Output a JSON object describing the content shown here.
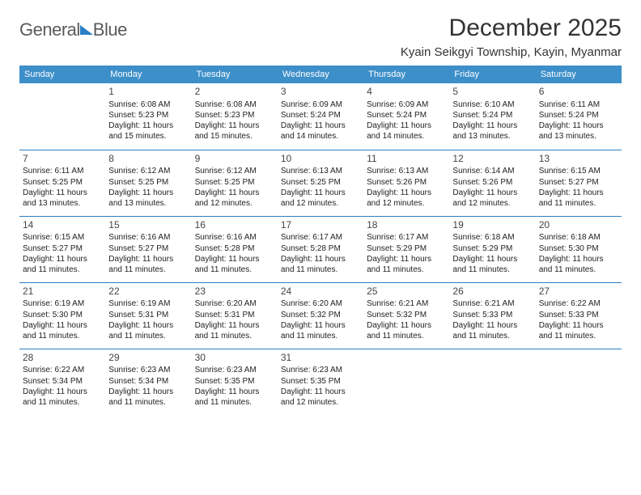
{
  "logo": {
    "text_left": "General",
    "text_right": "Blue"
  },
  "title": "December 2025",
  "location": "Kyain Seikgyi Township, Kayin, Myanmar",
  "colors": {
    "header_bg": "#3d8fc9",
    "rule": "#2a7ec5",
    "logo_gray": "#5a5a5a",
    "logo_blue": "#2a7ec5"
  },
  "weekdays": [
    "Sunday",
    "Monday",
    "Tuesday",
    "Wednesday",
    "Thursday",
    "Friday",
    "Saturday"
  ],
  "weeks": [
    [
      null,
      {
        "n": "1",
        "sr": "6:08 AM",
        "ss": "5:23 PM",
        "dl": "11 hours and 15 minutes."
      },
      {
        "n": "2",
        "sr": "6:08 AM",
        "ss": "5:23 PM",
        "dl": "11 hours and 15 minutes."
      },
      {
        "n": "3",
        "sr": "6:09 AM",
        "ss": "5:24 PM",
        "dl": "11 hours and 14 minutes."
      },
      {
        "n": "4",
        "sr": "6:09 AM",
        "ss": "5:24 PM",
        "dl": "11 hours and 14 minutes."
      },
      {
        "n": "5",
        "sr": "6:10 AM",
        "ss": "5:24 PM",
        "dl": "11 hours and 13 minutes."
      },
      {
        "n": "6",
        "sr": "6:11 AM",
        "ss": "5:24 PM",
        "dl": "11 hours and 13 minutes."
      }
    ],
    [
      {
        "n": "7",
        "sr": "6:11 AM",
        "ss": "5:25 PM",
        "dl": "11 hours and 13 minutes."
      },
      {
        "n": "8",
        "sr": "6:12 AM",
        "ss": "5:25 PM",
        "dl": "11 hours and 13 minutes."
      },
      {
        "n": "9",
        "sr": "6:12 AM",
        "ss": "5:25 PM",
        "dl": "11 hours and 12 minutes."
      },
      {
        "n": "10",
        "sr": "6:13 AM",
        "ss": "5:25 PM",
        "dl": "11 hours and 12 minutes."
      },
      {
        "n": "11",
        "sr": "6:13 AM",
        "ss": "5:26 PM",
        "dl": "11 hours and 12 minutes."
      },
      {
        "n": "12",
        "sr": "6:14 AM",
        "ss": "5:26 PM",
        "dl": "11 hours and 12 minutes."
      },
      {
        "n": "13",
        "sr": "6:15 AM",
        "ss": "5:27 PM",
        "dl": "11 hours and 11 minutes."
      }
    ],
    [
      {
        "n": "14",
        "sr": "6:15 AM",
        "ss": "5:27 PM",
        "dl": "11 hours and 11 minutes."
      },
      {
        "n": "15",
        "sr": "6:16 AM",
        "ss": "5:27 PM",
        "dl": "11 hours and 11 minutes."
      },
      {
        "n": "16",
        "sr": "6:16 AM",
        "ss": "5:28 PM",
        "dl": "11 hours and 11 minutes."
      },
      {
        "n": "17",
        "sr": "6:17 AM",
        "ss": "5:28 PM",
        "dl": "11 hours and 11 minutes."
      },
      {
        "n": "18",
        "sr": "6:17 AM",
        "ss": "5:29 PM",
        "dl": "11 hours and 11 minutes."
      },
      {
        "n": "19",
        "sr": "6:18 AM",
        "ss": "5:29 PM",
        "dl": "11 hours and 11 minutes."
      },
      {
        "n": "20",
        "sr": "6:18 AM",
        "ss": "5:30 PM",
        "dl": "11 hours and 11 minutes."
      }
    ],
    [
      {
        "n": "21",
        "sr": "6:19 AM",
        "ss": "5:30 PM",
        "dl": "11 hours and 11 minutes."
      },
      {
        "n": "22",
        "sr": "6:19 AM",
        "ss": "5:31 PM",
        "dl": "11 hours and 11 minutes."
      },
      {
        "n": "23",
        "sr": "6:20 AM",
        "ss": "5:31 PM",
        "dl": "11 hours and 11 minutes."
      },
      {
        "n": "24",
        "sr": "6:20 AM",
        "ss": "5:32 PM",
        "dl": "11 hours and 11 minutes."
      },
      {
        "n": "25",
        "sr": "6:21 AM",
        "ss": "5:32 PM",
        "dl": "11 hours and 11 minutes."
      },
      {
        "n": "26",
        "sr": "6:21 AM",
        "ss": "5:33 PM",
        "dl": "11 hours and 11 minutes."
      },
      {
        "n": "27",
        "sr": "6:22 AM",
        "ss": "5:33 PM",
        "dl": "11 hours and 11 minutes."
      }
    ],
    [
      {
        "n": "28",
        "sr": "6:22 AM",
        "ss": "5:34 PM",
        "dl": "11 hours and 11 minutes."
      },
      {
        "n": "29",
        "sr": "6:23 AM",
        "ss": "5:34 PM",
        "dl": "11 hours and 11 minutes."
      },
      {
        "n": "30",
        "sr": "6:23 AM",
        "ss": "5:35 PM",
        "dl": "11 hours and 11 minutes."
      },
      {
        "n": "31",
        "sr": "6:23 AM",
        "ss": "5:35 PM",
        "dl": "11 hours and 12 minutes."
      },
      null,
      null,
      null
    ]
  ],
  "labels": {
    "sunrise": "Sunrise:",
    "sunset": "Sunset:",
    "daylight": "Daylight:"
  }
}
